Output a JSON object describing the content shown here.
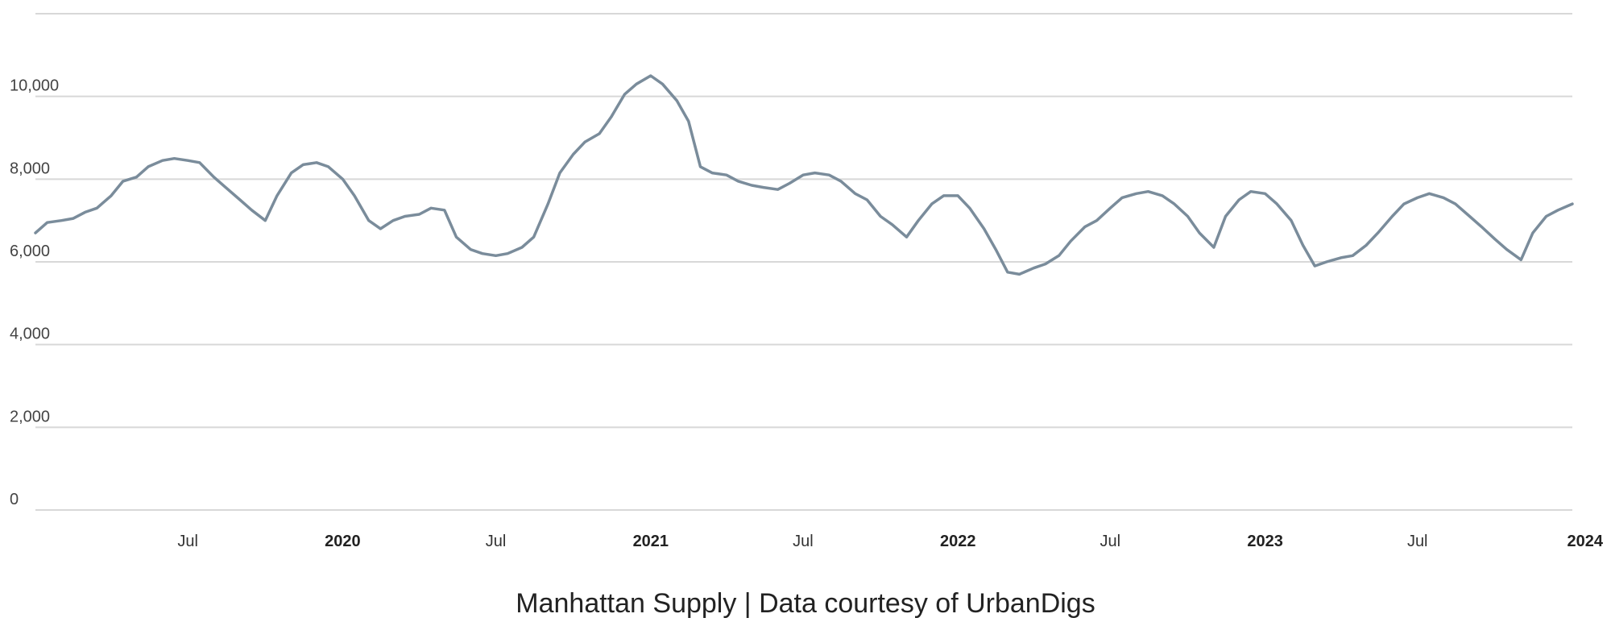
{
  "chart_data": {
    "type": "line",
    "title": "",
    "caption": "Manhattan Supply | Data courtesy of UrbanDigs",
    "xlabel": "",
    "ylabel": "",
    "ylim": [
      0,
      12000
    ],
    "yticks": [
      0,
      2000,
      4000,
      6000,
      8000,
      10000
    ],
    "ytick_labels": [
      "0",
      "2,000",
      "4,000",
      "6,000",
      "8,000",
      "10,000"
    ],
    "grid": "horizontal",
    "x_axis": "date",
    "xlim": [
      "2019-01-01",
      "2024-01-01"
    ],
    "xticks": [
      {
        "date": "2019-07-01",
        "label": "Jul",
        "bold": false
      },
      {
        "date": "2020-01-01",
        "label": "2020",
        "bold": true
      },
      {
        "date": "2020-07-01",
        "label": "Jul",
        "bold": false
      },
      {
        "date": "2021-01-01",
        "label": "2021",
        "bold": true
      },
      {
        "date": "2021-07-01",
        "label": "Jul",
        "bold": false
      },
      {
        "date": "2022-01-01",
        "label": "2022",
        "bold": true
      },
      {
        "date": "2022-07-01",
        "label": "Jul",
        "bold": false
      },
      {
        "date": "2023-01-01",
        "label": "2023",
        "bold": true
      },
      {
        "date": "2023-07-01",
        "label": "Jul",
        "bold": false
      },
      {
        "date": "2024-01-01",
        "label": "2024",
        "bold": true
      }
    ],
    "series": [
      {
        "name": "",
        "color": "#7a8c9b",
        "points": [
          [
            "2019-01-01",
            6700
          ],
          [
            "2019-01-15",
            6950
          ],
          [
            "2019-02-01",
            7000
          ],
          [
            "2019-02-15",
            7050
          ],
          [
            "2019-03-01",
            7200
          ],
          [
            "2019-03-15",
            7300
          ],
          [
            "2019-04-01",
            7600
          ],
          [
            "2019-04-15",
            7950
          ],
          [
            "2019-05-01",
            8050
          ],
          [
            "2019-05-15",
            8300
          ],
          [
            "2019-06-01",
            8450
          ],
          [
            "2019-06-15",
            8500
          ],
          [
            "2019-07-01",
            8450
          ],
          [
            "2019-07-15",
            8400
          ],
          [
            "2019-08-01",
            8050
          ],
          [
            "2019-08-15",
            7800
          ],
          [
            "2019-09-01",
            7500
          ],
          [
            "2019-09-15",
            7250
          ],
          [
            "2019-10-01",
            7000
          ],
          [
            "2019-10-15",
            7600
          ],
          [
            "2019-11-01",
            8150
          ],
          [
            "2019-11-15",
            8350
          ],
          [
            "2019-12-01",
            8400
          ],
          [
            "2019-12-15",
            8300
          ],
          [
            "2020-01-01",
            8000
          ],
          [
            "2020-01-15",
            7600
          ],
          [
            "2020-02-01",
            7000
          ],
          [
            "2020-02-15",
            6800
          ],
          [
            "2020-03-01",
            7000
          ],
          [
            "2020-03-15",
            7100
          ],
          [
            "2020-04-01",
            7150
          ],
          [
            "2020-04-15",
            7300
          ],
          [
            "2020-05-01",
            7250
          ],
          [
            "2020-05-15",
            6600
          ],
          [
            "2020-06-01",
            6300
          ],
          [
            "2020-06-15",
            6200
          ],
          [
            "2020-07-01",
            6150
          ],
          [
            "2020-07-15",
            6200
          ],
          [
            "2020-08-01",
            6350
          ],
          [
            "2020-08-15",
            6600
          ],
          [
            "2020-09-01",
            7400
          ],
          [
            "2020-09-15",
            8150
          ],
          [
            "2020-10-01",
            8600
          ],
          [
            "2020-10-15",
            8900
          ],
          [
            "2020-11-01",
            9100
          ],
          [
            "2020-11-15",
            9500
          ],
          [
            "2020-12-01",
            10050
          ],
          [
            "2020-12-15",
            10300
          ],
          [
            "2021-01-01",
            10500
          ],
          [
            "2021-01-15",
            10300
          ],
          [
            "2021-02-01",
            9900
          ],
          [
            "2021-02-15",
            9400
          ],
          [
            "2021-03-01",
            8300
          ],
          [
            "2021-03-15",
            8150
          ],
          [
            "2021-04-01",
            8100
          ],
          [
            "2021-04-15",
            7950
          ],
          [
            "2021-05-01",
            7850
          ],
          [
            "2021-05-15",
            7800
          ],
          [
            "2021-06-01",
            7750
          ],
          [
            "2021-06-15",
            7900
          ],
          [
            "2021-07-01",
            8100
          ],
          [
            "2021-07-15",
            8150
          ],
          [
            "2021-08-01",
            8100
          ],
          [
            "2021-08-15",
            7950
          ],
          [
            "2021-09-01",
            7650
          ],
          [
            "2021-09-15",
            7500
          ],
          [
            "2021-10-01",
            7100
          ],
          [
            "2021-10-15",
            6900
          ],
          [
            "2021-11-01",
            6600
          ],
          [
            "2021-11-15",
            7000
          ],
          [
            "2021-12-01",
            7400
          ],
          [
            "2021-12-15",
            7600
          ],
          [
            "2022-01-01",
            7600
          ],
          [
            "2022-01-15",
            7300
          ],
          [
            "2022-02-01",
            6800
          ],
          [
            "2022-02-15",
            6300
          ],
          [
            "2022-03-01",
            5750
          ],
          [
            "2022-03-15",
            5700
          ],
          [
            "2022-04-01",
            5850
          ],
          [
            "2022-04-15",
            5950
          ],
          [
            "2022-05-01",
            6150
          ],
          [
            "2022-05-15",
            6500
          ],
          [
            "2022-06-01",
            6850
          ],
          [
            "2022-06-15",
            7000
          ],
          [
            "2022-07-01",
            7300
          ],
          [
            "2022-07-15",
            7550
          ],
          [
            "2022-08-01",
            7650
          ],
          [
            "2022-08-15",
            7700
          ],
          [
            "2022-09-01",
            7600
          ],
          [
            "2022-09-15",
            7400
          ],
          [
            "2022-10-01",
            7100
          ],
          [
            "2022-10-15",
            6700
          ],
          [
            "2022-11-01",
            6350
          ],
          [
            "2022-11-15",
            7100
          ],
          [
            "2022-12-01",
            7500
          ],
          [
            "2022-12-15",
            7700
          ],
          [
            "2023-01-01",
            7650
          ],
          [
            "2023-01-15",
            7400
          ],
          [
            "2023-02-01",
            7000
          ],
          [
            "2023-02-15",
            6400
          ],
          [
            "2023-03-01",
            5900
          ],
          [
            "2023-03-15",
            6000
          ],
          [
            "2023-04-01",
            6100
          ],
          [
            "2023-04-15",
            6150
          ],
          [
            "2023-05-01",
            6400
          ],
          [
            "2023-05-15",
            6700
          ],
          [
            "2023-06-01",
            7100
          ],
          [
            "2023-06-15",
            7400
          ],
          [
            "2023-07-01",
            7550
          ],
          [
            "2023-07-15",
            7650
          ],
          [
            "2023-08-01",
            7550
          ],
          [
            "2023-08-15",
            7400
          ],
          [
            "2023-09-01",
            7100
          ],
          [
            "2023-09-15",
            6850
          ],
          [
            "2023-10-01",
            6550
          ],
          [
            "2023-10-15",
            6300
          ],
          [
            "2023-11-01",
            6050
          ],
          [
            "2023-11-15",
            6700
          ],
          [
            "2023-12-01",
            7100
          ],
          [
            "2023-12-15",
            7250
          ],
          [
            "2024-01-01",
            7400
          ]
        ]
      }
    ]
  }
}
